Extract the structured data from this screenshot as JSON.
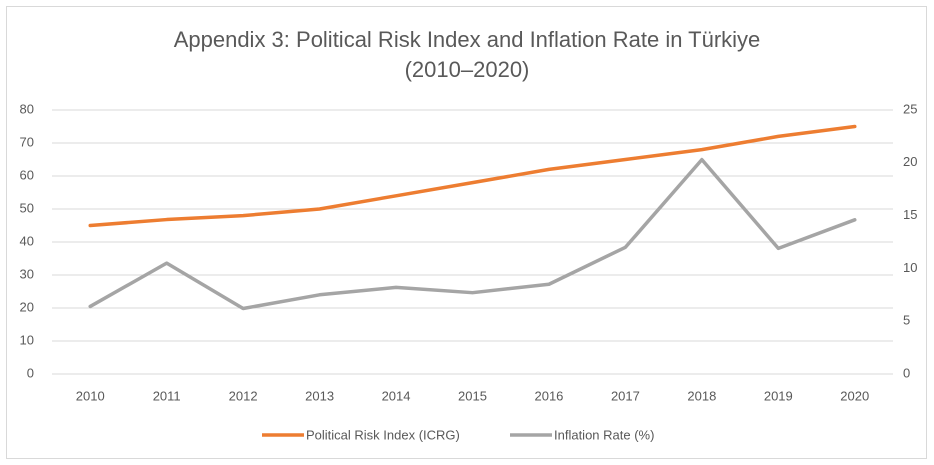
{
  "chart_data": {
    "type": "line",
    "title": [
      "Appendix 3: Political Risk Index and Inflation Rate in Türkiye",
      "(2010–2020)"
    ],
    "categories": [
      "2010",
      "2011",
      "2012",
      "2013",
      "2014",
      "2015",
      "2016",
      "2017",
      "2018",
      "2019",
      "2020"
    ],
    "series": [
      {
        "name": "Political Risk Index (ICRG)",
        "color": "#ed7d31",
        "values": [
          45,
          46.8,
          48,
          50,
          54,
          58,
          62,
          65,
          68,
          72,
          75
        ]
      },
      {
        "name": "Inflation Rate (%)",
        "color": "#a5a5a5",
        "axis": "y2",
        "values": [
          6.4,
          10.5,
          6.2,
          7.5,
          8.2,
          7.7,
          8.5,
          12.0,
          20.3,
          11.9,
          14.6
        ]
      }
    ],
    "ylim": [
      0,
      80
    ],
    "yticks": [
      0,
      10,
      20,
      30,
      40,
      50,
      60,
      70,
      80
    ],
    "y2lim": [
      0,
      25
    ],
    "y2ticks": [
      0,
      5,
      10,
      15,
      20,
      25
    ],
    "grid": true,
    "legend": "bottom"
  }
}
